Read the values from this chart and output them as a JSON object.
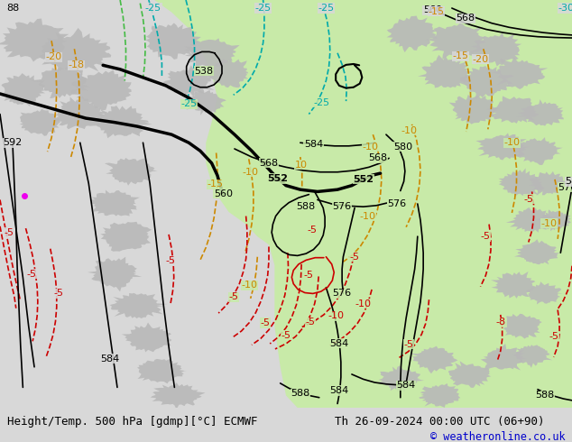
{
  "title_left": "Height/Temp. 500 hPa [gdmp][°C] ECMWF",
  "title_right": "Th 26-09-2024 00:00 UTC (06+90)",
  "copyright": "© weatheronline.co.uk",
  "bg_color": "#d8d8d8",
  "green_fill_color": "#c8eaa8",
  "land_gray_color": "#b8b8b8",
  "bottom_bar_color": "#ffffff",
  "copyright_color": "#0000cc",
  "geopotential_contour_color": "#000000",
  "temp_orange_color": "#cc8800",
  "temp_red_color": "#cc0000",
  "temp_cyan_color": "#00aaaa",
  "temp_green_color": "#44bb44"
}
